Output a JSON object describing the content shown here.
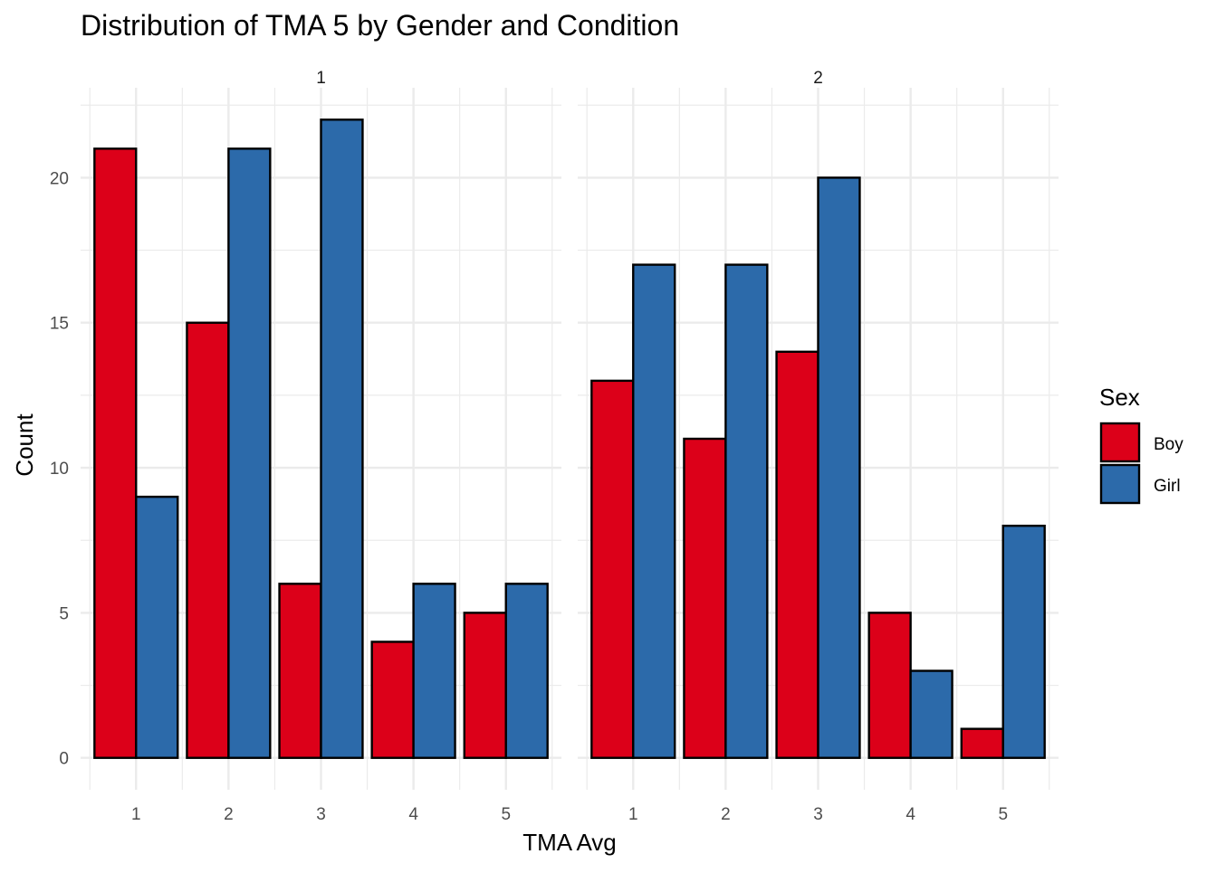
{
  "chart_data": {
    "type": "bar",
    "title": "Distribution of TMA 5 by Gender and Condition",
    "xlabel": "TMA Avg",
    "ylabel": "Count",
    "ylim": [
      -1.1,
      23.1
    ],
    "y_ticks": [
      0,
      5,
      10,
      15,
      20
    ],
    "grid": true,
    "legend": {
      "title": "Sex",
      "placement": "right",
      "entries": [
        {
          "name": "Boy",
          "color": "#DC0019"
        },
        {
          "name": "Girl",
          "color": "#2C6AAA"
        }
      ]
    },
    "categories": [
      "1",
      "2",
      "3",
      "4",
      "5"
    ],
    "facets": [
      {
        "label": "1",
        "series": [
          {
            "name": "Boy",
            "values": [
              21,
              15,
              6,
              4,
              5
            ]
          },
          {
            "name": "Girl",
            "values": [
              9,
              21,
              22,
              6,
              6
            ]
          }
        ]
      },
      {
        "label": "2",
        "series": [
          {
            "name": "Boy",
            "values": [
              13,
              11,
              14,
              5,
              1
            ]
          },
          {
            "name": "Girl",
            "values": [
              17,
              17,
              20,
              3,
              8
            ]
          }
        ]
      }
    ],
    "colors": {
      "Boy": "#DC0019",
      "Girl": "#2C6AAA",
      "outline": "#000000",
      "grid": "#EBEBEB"
    }
  }
}
